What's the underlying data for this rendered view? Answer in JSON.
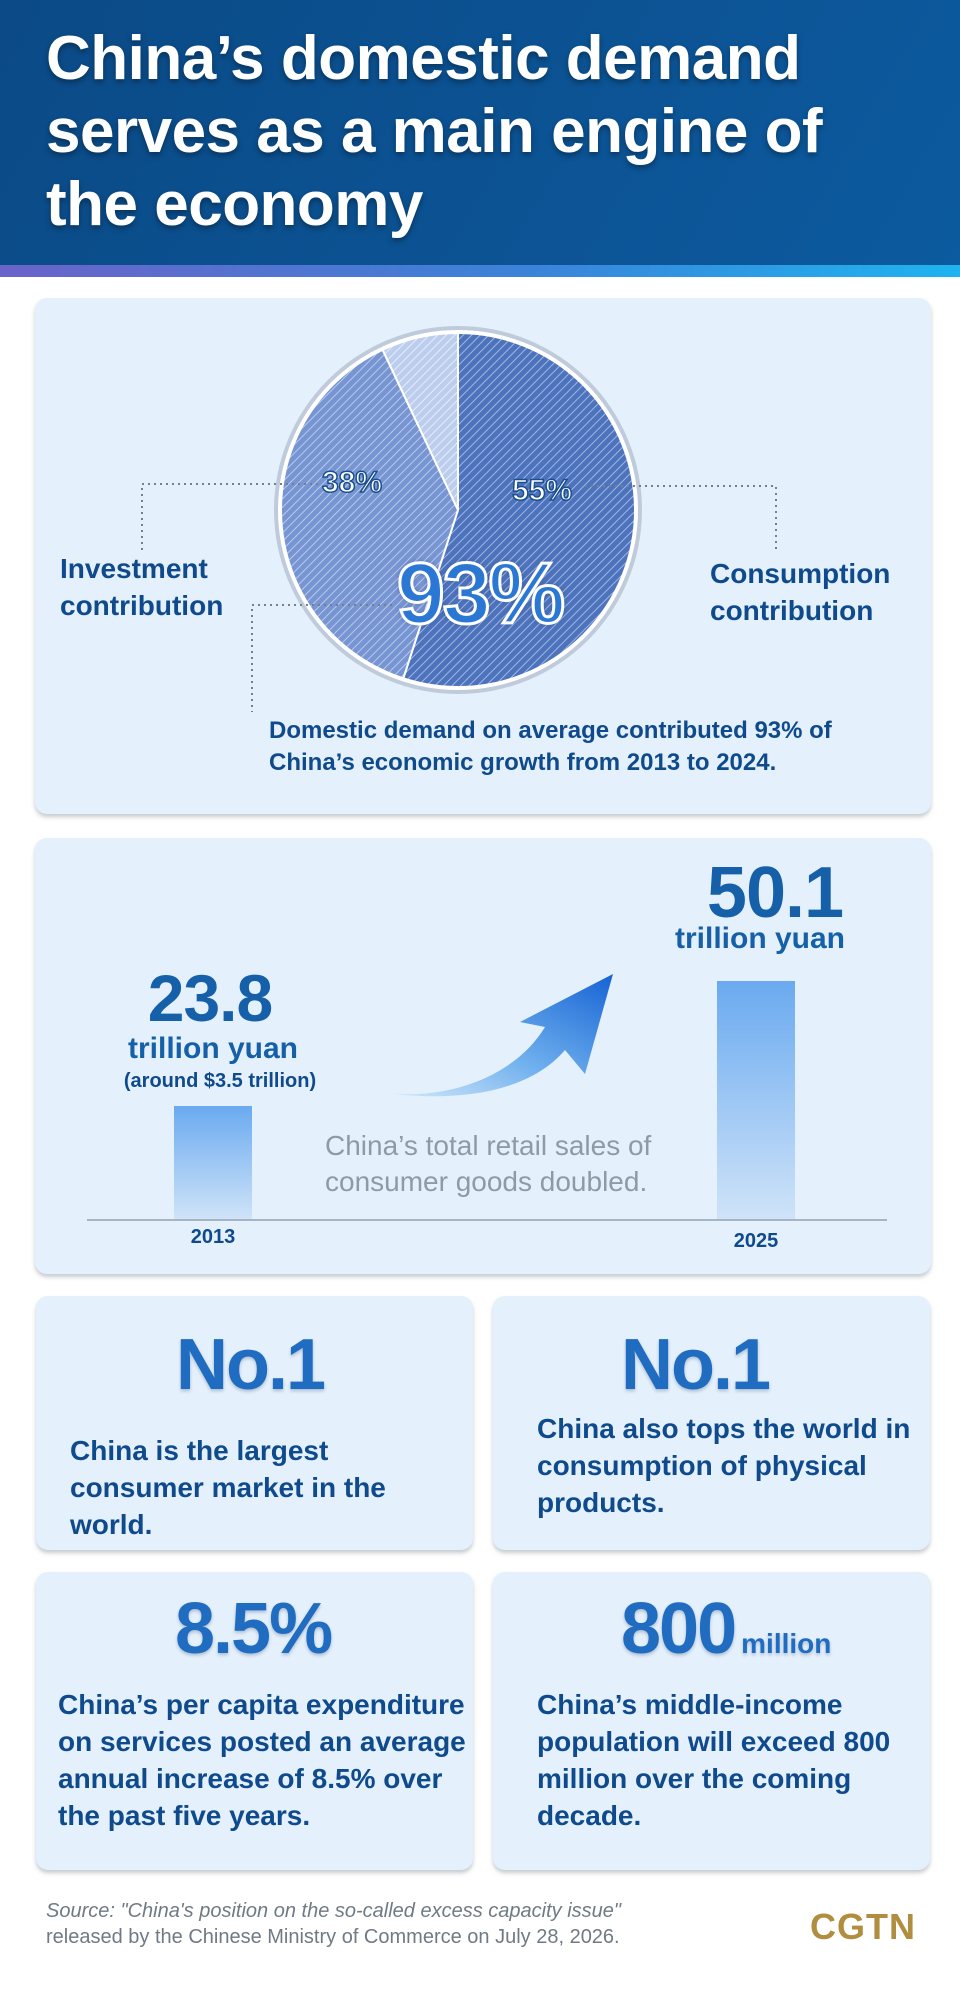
{
  "header": {
    "title": "China’s domestic demand serves as a main engine of the economy"
  },
  "chart_data": {
    "type": "pie",
    "slices": [
      {
        "label": "Consumption contribution",
        "value": 55
      },
      {
        "label": "Investment contribution",
        "value": 38
      },
      {
        "label": "",
        "value": 7
      }
    ],
    "center_label": "93%",
    "note": "Domestic demand on average contributed 93% of China’s economic growth from 2013 to 2024."
  },
  "pie": {
    "investment_pct": "38%",
    "consumption_pct": "55%",
    "investment_label_1": "Investment",
    "investment_label_2": "contribution",
    "consumption_label_1": "Consumption",
    "consumption_label_2": "contribution",
    "total_pct": "93%",
    "note": "Domestic demand on average contributed 93% of China’s economic growth from 2013 to 2024.",
    "colors": {
      "consumption": "#4c74c0",
      "investment": "#7d9ad6",
      "other": "#c9d8f0"
    }
  },
  "sales": {
    "chart": {
      "type": "bar",
      "categories": [
        "2013",
        "2025"
      ],
      "values": [
        23.8,
        50.1
      ],
      "unit": "trillion yuan"
    },
    "left": {
      "value": "23.8",
      "unit": "trillion yuan",
      "note": "(around $3.5 trillion)",
      "year": "2013"
    },
    "right": {
      "value": "50.1",
      "unit": "trillion yuan",
      "year": "2025"
    },
    "caption_1": "China’s total retail sales of",
    "caption_2": "consumer goods doubled."
  },
  "stats": [
    {
      "big": "No.1",
      "text": "China is the largest consumer market in the world."
    },
    {
      "big": "No.1",
      "text": "China also tops the world in consumption of physical products."
    },
    {
      "big": "8.5%",
      "text": "China’s per capita expenditure on services posted an average annual increase of 8.5% over the past five years."
    },
    {
      "big": "800",
      "suffix": "million",
      "text": "China’s middle-income population will exceed 800 million over the coming decade."
    }
  ],
  "source": {
    "line1": "Source: \"China's position on the so-called excess capacity issue\"",
    "line2": "released by the Chinese Ministry of Commerce on July 28, 2026."
  },
  "logo": "CGTN"
}
